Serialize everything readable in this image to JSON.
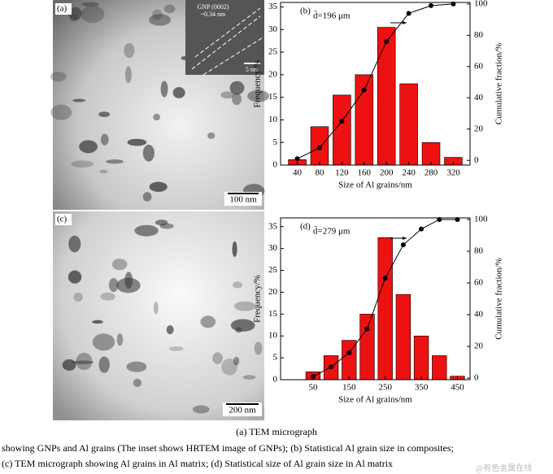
{
  "figure": {
    "panel_labels": [
      "(a)",
      "(c)"
    ],
    "scale_bars": [
      "100 nm",
      "200 nm"
    ],
    "inset": {
      "title": "GNP (0002)",
      "spacing": "~0.34 nm",
      "scale": "5 nm"
    }
  },
  "chart_data": [
    {
      "type": "bar",
      "panel_label": "(b)",
      "annotation": "d̄=196 μm",
      "xlabel": "Size of Al grains/nm",
      "ylabel": "Frequency/%",
      "y2label": "Cumulative fraction/%",
      "x": [
        40,
        80,
        120,
        160,
        200,
        240,
        280,
        320
      ],
      "series": [
        {
          "color": "#ee1111",
          "values": [
            1.2,
            8.5,
            15.5,
            20,
            30.5,
            18,
            5,
            1.7
          ]
        },
        {
          "color": "#000000",
          "axis": "y2",
          "values": [
            1,
            8,
            25,
            45,
            76,
            94,
            99,
            100
          ]
        }
      ],
      "xlim": [
        10,
        350
      ],
      "xticks": [
        40,
        80,
        120,
        160,
        200,
        240,
        280,
        320
      ],
      "ylim": [
        0,
        36
      ],
      "yticks": [
        0,
        5,
        10,
        15,
        20,
        25,
        30,
        35
      ],
      "y2lim": [
        -3,
        101
      ],
      "y2ticks": [
        0,
        20,
        40,
        60,
        80,
        100
      ]
    },
    {
      "type": "bar",
      "panel_label": "(d)",
      "annotation": "d̄=279 μm",
      "xlabel": "Size of Al grains/nm",
      "ylabel": "Frequency/%",
      "y2label": "Cumulative fraction/%",
      "x": [
        50,
        100,
        150,
        200,
        250,
        300,
        350,
        400,
        450
      ],
      "series": [
        {
          "color": "#ee1111",
          "values": [
            1.8,
            5.5,
            9,
            15,
            32.5,
            19.5,
            10,
            5.5,
            0.8
          ]
        },
        {
          "color": "#000000",
          "axis": "y2",
          "values": [
            1,
            7,
            16,
            31,
            63,
            84,
            94,
            100,
            100
          ]
        }
      ],
      "xlim": [
        -40,
        485
      ],
      "xticks": [
        50,
        150,
        250,
        350,
        450
      ],
      "ylim": [
        0,
        37
      ],
      "yticks": [
        0,
        5,
        10,
        15,
        20,
        25,
        30,
        35
      ],
      "y2lim": [
        -1,
        101
      ],
      "y2ticks": [
        0,
        20,
        40,
        60,
        80,
        100
      ]
    }
  ],
  "caption": [
    "(a) TEM micrograph",
    "showing GNPs and Al grains (The inset shows HRTEM image of GNPs); (b) Statistical Al grain size in composites;",
    "(c) TEM micrograph showing Al grains in Al matrix; (d) Statistical size of Al grain size in Al matrix",
    "@有色金属在线"
  ]
}
